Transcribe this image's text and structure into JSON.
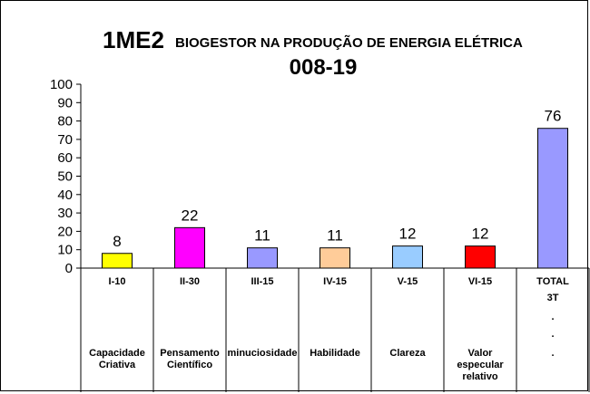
{
  "chart_data": {
    "type": "bar",
    "title": "1ME2",
    "subtitle": "BIOGESTOR NA PRODUÇÃO DE ENERGIA ELÉTRICA",
    "title_line2": "008-19",
    "xlabel": "",
    "ylabel": "",
    "ylim": [
      0,
      100
    ],
    "yticks": [
      0,
      10,
      20,
      30,
      40,
      50,
      60,
      70,
      80,
      90,
      100
    ],
    "grid": false,
    "legend": "none",
    "categories": [
      "I-10",
      "II-30",
      "III-15",
      "IV-15",
      "V-15",
      "VI-15",
      "TOTAL"
    ],
    "category_extra": [
      "",
      "",
      "",
      "",
      "",
      "",
      "3T"
    ],
    "category_dots": [
      "",
      "",
      "",
      "",
      "",
      "",
      "."
    ],
    "category_descriptions": [
      [
        "Capacidade",
        "Criativa"
      ],
      [
        "Pensamento",
        "Científico"
      ],
      [
        "minuciosidade"
      ],
      [
        "Habilidade"
      ],
      [
        "Clareza"
      ],
      [
        "Valor",
        "especular",
        "relativo"
      ],
      [
        "."
      ]
    ],
    "values": [
      8,
      22,
      11,
      11,
      12,
      12,
      76
    ],
    "data_labels": [
      "8",
      "22",
      "11",
      "11",
      "12",
      "12",
      "76"
    ],
    "colors": [
      "#ffff00",
      "#ff00ff",
      "#9999ff",
      "#ffcc99",
      "#99ccff",
      "#ff0000",
      "#9999ff"
    ]
  }
}
